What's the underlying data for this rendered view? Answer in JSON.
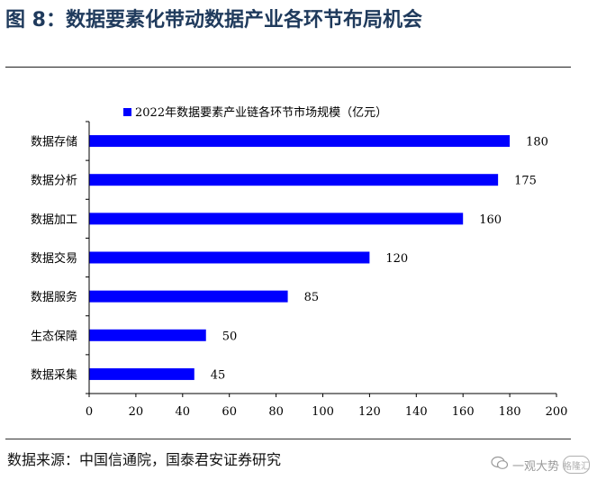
{
  "page": {
    "title": "图 8：数据要素化带动数据产业各环节布局机会",
    "source": "数据来源：中国信通院，国泰君安证券研究",
    "watermark": {
      "brand": "一观大势",
      "logo_text": "格隆汇"
    }
  },
  "colors": {
    "bar": "#0000ff",
    "title": "#1f3a5c",
    "axis": "#000000"
  },
  "chart_data": {
    "type": "bar",
    "orientation": "horizontal",
    "title": "",
    "xlabel": "",
    "ylabel": "",
    "categories": [
      "数据存储",
      "数据分析",
      "数据加工",
      "数据交易",
      "数据服务",
      "生态保障",
      "数据采集"
    ],
    "series": [
      {
        "name": "2022年数据要素产业链各环节市场规模（亿元）",
        "values": [
          180,
          175,
          160,
          120,
          85,
          50,
          45
        ]
      }
    ],
    "xlim": [
      0,
      200
    ],
    "xticks": [
      0,
      20,
      40,
      60,
      80,
      100,
      120,
      140,
      160,
      180,
      200
    ],
    "grid": false,
    "legend": "top-center",
    "data_labels": true
  }
}
